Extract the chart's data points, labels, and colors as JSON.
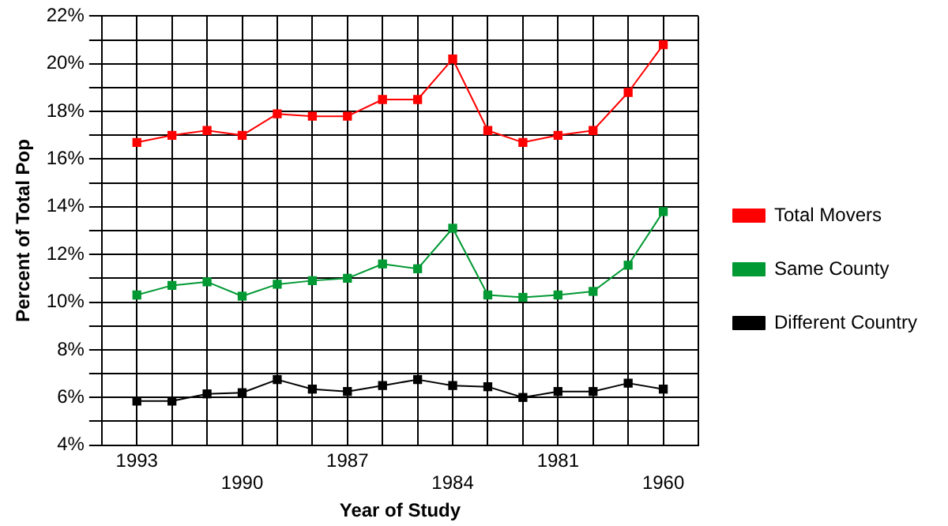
{
  "chart_data": {
    "type": "line",
    "xlabel": "Year of Study",
    "ylabel": "Percent of Total Pop",
    "categories": [
      "1993",
      null,
      null,
      "1990",
      null,
      null,
      "1987",
      null,
      null,
      "1984",
      null,
      null,
      "1981",
      null,
      null,
      "1960"
    ],
    "series": [
      {
        "name": "Total Movers",
        "color": "#ff0000",
        "values": [
          16.7,
          17.0,
          17.2,
          17.0,
          17.9,
          17.8,
          17.8,
          18.5,
          18.5,
          20.2,
          17.2,
          16.7,
          17.0,
          17.2,
          18.8,
          20.8
        ]
      },
      {
        "name": "Same County",
        "color": "#009933",
        "values": [
          10.3,
          10.7,
          10.85,
          10.25,
          10.75,
          10.9,
          11.0,
          11.6,
          11.4,
          13.1,
          10.3,
          10.2,
          10.3,
          10.45,
          11.55,
          13.8
        ]
      },
      {
        "name": "Different Country",
        "color": "#000000",
        "values": [
          5.85,
          5.85,
          6.15,
          6.2,
          6.75,
          6.35,
          6.25,
          6.5,
          6.75,
          6.5,
          6.45,
          6.0,
          6.25,
          6.25,
          6.6,
          6.35
        ]
      }
    ],
    "ylim": [
      4,
      22
    ],
    "yticks": [
      {
        "value": 4,
        "label": "4%"
      },
      {
        "value": 5,
        "label": null
      },
      {
        "value": 6,
        "label": "6%"
      },
      {
        "value": 7,
        "label": null
      },
      {
        "value": 8,
        "label": "8%"
      },
      {
        "value": 9,
        "label": null
      },
      {
        "value": 10,
        "label": "10%"
      },
      {
        "value": 11,
        "label": null
      },
      {
        "value": 12,
        "label": "12%"
      },
      {
        "value": 13,
        "label": null
      },
      {
        "value": 14,
        "label": "14%"
      },
      {
        "value": 15,
        "label": null
      },
      {
        "value": 16,
        "label": "16%"
      },
      {
        "value": 17,
        "label": null
      },
      {
        "value": 18,
        "label": "18%"
      },
      {
        "value": 19,
        "label": null
      },
      {
        "value": 20,
        "label": "20%"
      },
      {
        "value": 21,
        "label": null
      },
      {
        "value": 22,
        "label": "22%"
      }
    ],
    "grid": true,
    "legend": "right",
    "marker": "square",
    "line_style": "solid"
  }
}
